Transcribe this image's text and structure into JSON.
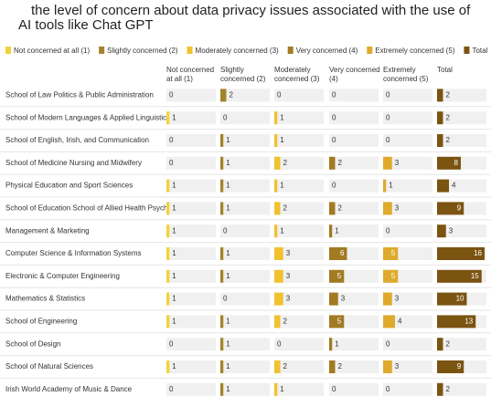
{
  "chart_data": {
    "type": "table-bar",
    "title": "the level of concern about data privacy issues associated with the use of AI tools like Chat GPT",
    "categories": [
      "School of Law Politics & Public Administration",
      "School of Modern Languages & Applied Linguistics",
      "School of English, Irish, and Communication",
      "School of Medicine Nursing and Midwifery",
      "Physical Education and Sport Sciences",
      "School of Education School of Allied Health Psychology",
      "Management & Marketing",
      "Computer Science & Information Systems",
      "Electronic & Computer Engineering",
      "Mathematics & Statistics",
      "School of Engineering",
      "School of Design",
      "School of Natural Sciences",
      "Irish World Academy of Music & Dance"
    ],
    "series": [
      {
        "name": "Not concerned at all (1)",
        "color": "#f3d23b",
        "values": [
          0,
          1,
          0,
          0,
          1,
          1,
          1,
          1,
          1,
          1,
          1,
          0,
          1,
          0
        ]
      },
      {
        "name": "Slightly concerned (2)",
        "color": "#a3842a",
        "values": [
          2,
          0,
          1,
          1,
          1,
          1,
          0,
          1,
          1,
          0,
          1,
          1,
          1,
          1
        ]
      },
      {
        "name": "Moderately concerned (3)",
        "color": "#f1c12f",
        "values": [
          0,
          1,
          1,
          2,
          1,
          2,
          1,
          3,
          3,
          3,
          2,
          0,
          2,
          1
        ]
      },
      {
        "name": "Very concerned (4)",
        "color": "#a27a22",
        "values": [
          0,
          0,
          0,
          2,
          0,
          2,
          1,
          6,
          5,
          3,
          5,
          1,
          2,
          0
        ]
      },
      {
        "name": "Extremely concerned (5)",
        "color": "#dfaa2c",
        "values": [
          0,
          0,
          0,
          3,
          1,
          3,
          0,
          5,
          5,
          3,
          4,
          0,
          3,
          0
        ]
      },
      {
        "name": "Total",
        "color": "#7b5412",
        "values": [
          2,
          2,
          2,
          8,
          4,
          9,
          3,
          16,
          15,
          10,
          13,
          2,
          9,
          2
        ]
      }
    ]
  }
}
